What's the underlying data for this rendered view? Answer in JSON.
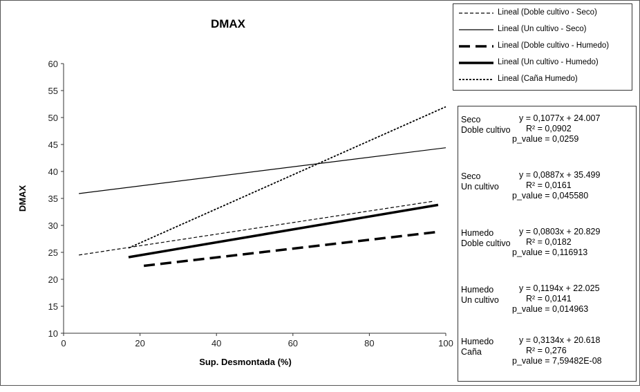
{
  "chart_data": {
    "type": "line",
    "title": "DMAX",
    "xlabel": "Sup. Desmontada (%)",
    "ylabel": "DMAX",
    "xlim": [
      0,
      100
    ],
    "ylim": [
      10,
      60
    ],
    "x_ticks": [
      0,
      20,
      40,
      60,
      80,
      100
    ],
    "y_ticks": [
      10,
      15,
      20,
      25,
      30,
      35,
      40,
      45,
      50,
      55,
      60
    ],
    "series": [
      {
        "name": "Lineal (Doble cultivo - Seco)",
        "style": "thin-dashed",
        "x": [
          4,
          97
        ],
        "y": [
          24.5,
          34.5
        ]
      },
      {
        "name": "Lineal (Un cultivo - Seco)",
        "style": "thin-solid",
        "x": [
          4,
          100
        ],
        "y": [
          35.9,
          44.4
        ]
      },
      {
        "name": "Lineal (Doble cultivo - Humedo)",
        "style": "thick-dashed",
        "x": [
          21,
          98
        ],
        "y": [
          22.5,
          28.8
        ]
      },
      {
        "name": "Lineal (Un cultivo - Humedo)",
        "style": "thick-solid",
        "x": [
          17,
          98
        ],
        "y": [
          24.1,
          33.8
        ]
      },
      {
        "name": "Lineal (Caña Humedo)",
        "style": "dotted",
        "x": [
          17,
          100
        ],
        "y": [
          25.8,
          52
        ]
      }
    ],
    "legend_position": "top-right",
    "annotations": [
      {
        "group": [
          "Seco",
          "Doble cultivo"
        ],
        "equation": "y = 0,1077x + 24.007",
        "r2": "R² = 0,0902",
        "p_value": "p_value = 0,0259"
      },
      {
        "group": [
          "Seco",
          "Un cultivo"
        ],
        "equation": "y = 0,0887x + 35.499",
        "r2": "R² = 0,0161",
        "p_value": "p_value = 0,045580"
      },
      {
        "group": [
          "Humedo",
          "Doble cultivo"
        ],
        "equation": "y = 0,0803x + 20.829",
        "r2": "R² = 0,0182",
        "p_value": "p_value = 0,116913"
      },
      {
        "group": [
          "Humedo",
          "Un cultivo"
        ],
        "equation": "y = 0,1194x + 22.025",
        "r2": "R² = 0,0141",
        "p_value": "p_value = 0,014963"
      },
      {
        "group": [
          "Humedo",
          "Caña"
        ],
        "equation": "y = 0,3134x + 20.618",
        "r2": "R² = 0,276",
        "p_value": "p_value = 7,59482E-08"
      }
    ]
  }
}
